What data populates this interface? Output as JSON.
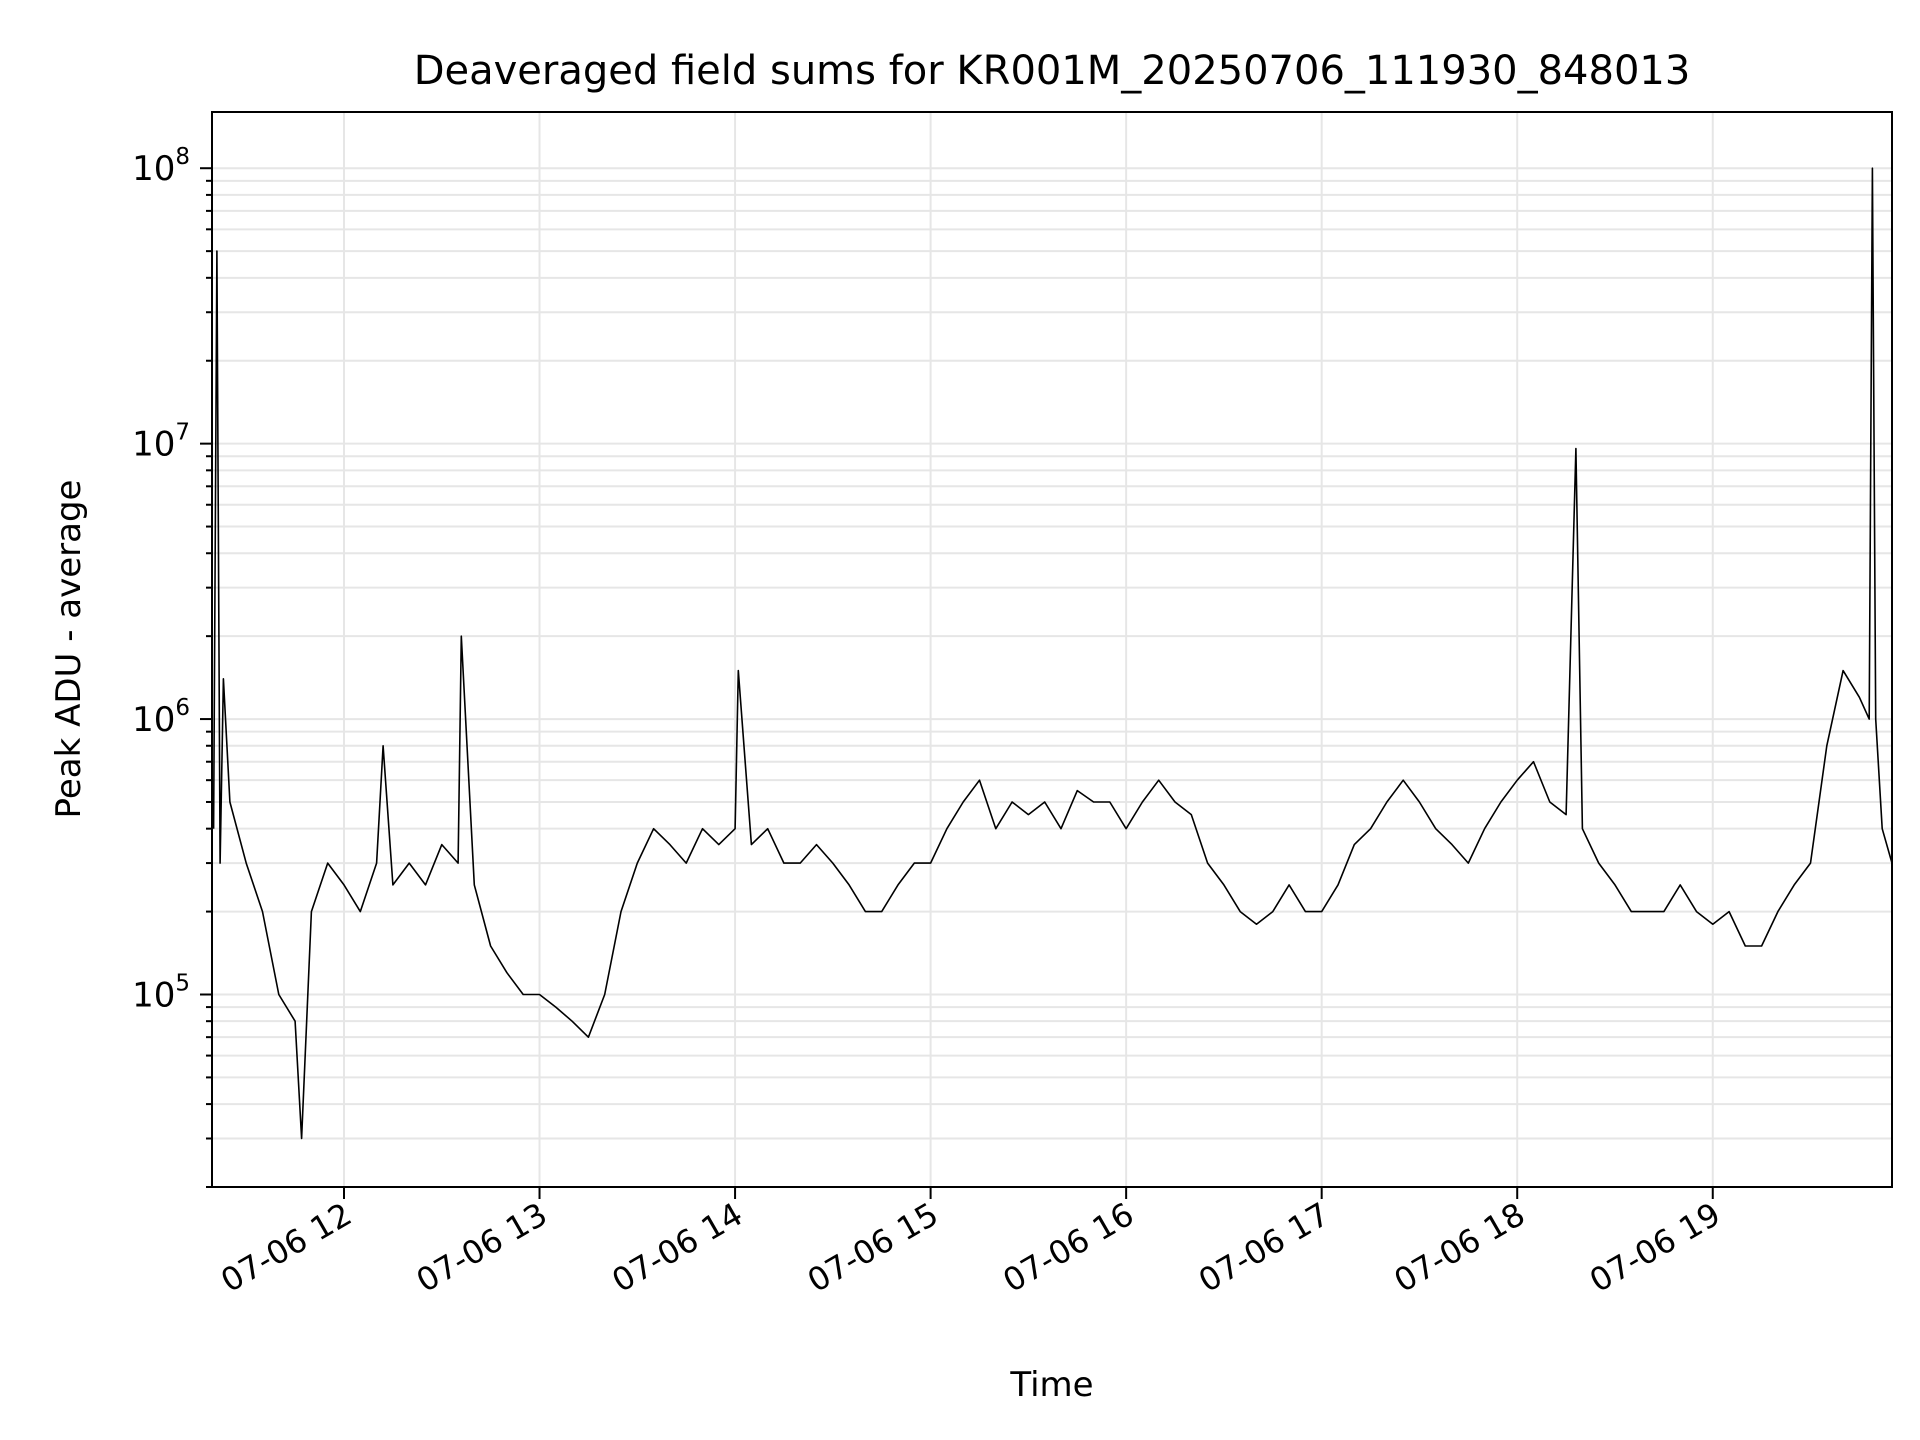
{
  "chart_data": {
    "type": "line",
    "title": "Deaveraged field sums for KR001M_20250706_111930_848013",
    "xlabel": "Time",
    "ylabel": "Peak ADU - average",
    "x_is_time": true,
    "xlim": [
      "2025-07-06 11:19:30",
      "2025-07-06 19:55:00"
    ],
    "ylog": true,
    "ylim": [
      20000,
      160000000
    ],
    "grid": {
      "major": true,
      "minor_y": true,
      "color": "#e6e6e6"
    },
    "line_color": "#000000",
    "xtick_labels": [
      {
        "label": "07-06 12",
        "value": "2025-07-06 12:00"
      },
      {
        "label": "07-06 13",
        "value": "2025-07-06 13:00"
      },
      {
        "label": "07-06 14",
        "value": "2025-07-06 14:00"
      },
      {
        "label": "07-06 15",
        "value": "2025-07-06 15:00"
      },
      {
        "label": "07-06 16",
        "value": "2025-07-06 16:00"
      },
      {
        "label": "07-06 17",
        "value": "2025-07-06 17:00"
      },
      {
        "label": "07-06 18",
        "value": "2025-07-06 18:00"
      },
      {
        "label": "07-06 19",
        "value": "2025-07-06 19:00"
      }
    ],
    "ytick_labels": [
      {
        "base": "10",
        "exp": "5",
        "value": 100000
      },
      {
        "base": "10",
        "exp": "6",
        "value": 1000000
      },
      {
        "base": "10",
        "exp": "7",
        "value": 10000000
      },
      {
        "base": "10",
        "exp": "8",
        "value": 100000000
      }
    ],
    "series": [
      {
        "x": [
          "2025-07-06 11:20",
          "2025-07-06 11:21",
          "2025-07-06 11:22",
          "2025-07-06 11:23",
          "2025-07-06 11:25",
          "2025-07-06 11:30",
          "2025-07-06 11:35",
          "2025-07-06 11:40",
          "2025-07-06 11:45",
          "2025-07-06 11:47",
          "2025-07-06 11:50",
          "2025-07-06 11:55",
          "2025-07-06 12:00",
          "2025-07-06 12:05",
          "2025-07-06 12:10",
          "2025-07-06 12:12",
          "2025-07-06 12:15",
          "2025-07-06 12:20",
          "2025-07-06 12:25",
          "2025-07-06 12:30",
          "2025-07-06 12:35",
          "2025-07-06 12:36",
          "2025-07-06 12:40",
          "2025-07-06 12:45",
          "2025-07-06 12:50",
          "2025-07-06 12:55",
          "2025-07-06 13:00",
          "2025-07-06 13:05",
          "2025-07-06 13:10",
          "2025-07-06 13:15",
          "2025-07-06 13:20",
          "2025-07-06 13:25",
          "2025-07-06 13:30",
          "2025-07-06 13:35",
          "2025-07-06 13:40",
          "2025-07-06 13:45",
          "2025-07-06 13:50",
          "2025-07-06 13:55",
          "2025-07-06 14:00",
          "2025-07-06 14:01",
          "2025-07-06 14:05",
          "2025-07-06 14:10",
          "2025-07-06 14:15",
          "2025-07-06 14:20",
          "2025-07-06 14:25",
          "2025-07-06 14:30",
          "2025-07-06 14:35",
          "2025-07-06 14:40",
          "2025-07-06 14:45",
          "2025-07-06 14:50",
          "2025-07-06 14:55",
          "2025-07-06 15:00",
          "2025-07-06 15:05",
          "2025-07-06 15:10",
          "2025-07-06 15:15",
          "2025-07-06 15:20",
          "2025-07-06 15:25",
          "2025-07-06 15:30",
          "2025-07-06 15:35",
          "2025-07-06 15:40",
          "2025-07-06 15:45",
          "2025-07-06 15:50",
          "2025-07-06 15:55",
          "2025-07-06 16:00",
          "2025-07-06 16:05",
          "2025-07-06 16:10",
          "2025-07-06 16:15",
          "2025-07-06 16:20",
          "2025-07-06 16:25",
          "2025-07-06 16:30",
          "2025-07-06 16:35",
          "2025-07-06 16:40",
          "2025-07-06 16:45",
          "2025-07-06 16:50",
          "2025-07-06 16:55",
          "2025-07-06 17:00",
          "2025-07-06 17:05",
          "2025-07-06 17:10",
          "2025-07-06 17:15",
          "2025-07-06 17:20",
          "2025-07-06 17:25",
          "2025-07-06 17:30",
          "2025-07-06 17:35",
          "2025-07-06 17:40",
          "2025-07-06 17:45",
          "2025-07-06 17:50",
          "2025-07-06 17:55",
          "2025-07-06 18:00",
          "2025-07-06 18:05",
          "2025-07-06 18:10",
          "2025-07-06 18:15",
          "2025-07-06 18:18",
          "2025-07-06 18:20",
          "2025-07-06 18:25",
          "2025-07-06 18:30",
          "2025-07-06 18:35",
          "2025-07-06 18:40",
          "2025-07-06 18:45",
          "2025-07-06 18:50",
          "2025-07-06 18:55",
          "2025-07-06 19:00",
          "2025-07-06 19:05",
          "2025-07-06 19:10",
          "2025-07-06 19:15",
          "2025-07-06 19:20",
          "2025-07-06 19:25",
          "2025-07-06 19:30",
          "2025-07-06 19:35",
          "2025-07-06 19:40",
          "2025-07-06 19:45",
          "2025-07-06 19:48",
          "2025-07-06 19:49",
          "2025-07-06 19:50",
          "2025-07-06 19:52",
          "2025-07-06 19:55"
        ],
        "y": [
          400000,
          50000000,
          300000,
          1400000,
          500000,
          300000,
          200000,
          100000,
          80000,
          30000,
          200000,
          300000,
          250000,
          200000,
          300000,
          800000,
          250000,
          300000,
          250000,
          350000,
          300000,
          2000000,
          250000,
          150000,
          120000,
          100000,
          100000,
          90000,
          80000,
          70000,
          100000,
          200000,
          300000,
          400000,
          350000,
          300000,
          400000,
          350000,
          400000,
          1500000,
          350000,
          400000,
          300000,
          300000,
          350000,
          300000,
          250000,
          200000,
          200000,
          250000,
          300000,
          300000,
          400000,
          500000,
          600000,
          400000,
          500000,
          450000,
          500000,
          400000,
          550000,
          500000,
          500000,
          400000,
          500000,
          600000,
          500000,
          450000,
          300000,
          250000,
          200000,
          180000,
          200000,
          250000,
          200000,
          200000,
          250000,
          350000,
          400000,
          500000,
          600000,
          500000,
          400000,
          350000,
          300000,
          400000,
          500000,
          600000,
          700000,
          500000,
          450000,
          9600000,
          400000,
          300000,
          250000,
          200000,
          200000,
          200000,
          250000,
          200000,
          180000,
          200000,
          150000,
          150000,
          200000,
          250000,
          300000,
          800000,
          1500000,
          1200000,
          1000000,
          100000000,
          1000000,
          400000,
          300000
        ]
      }
    ]
  }
}
